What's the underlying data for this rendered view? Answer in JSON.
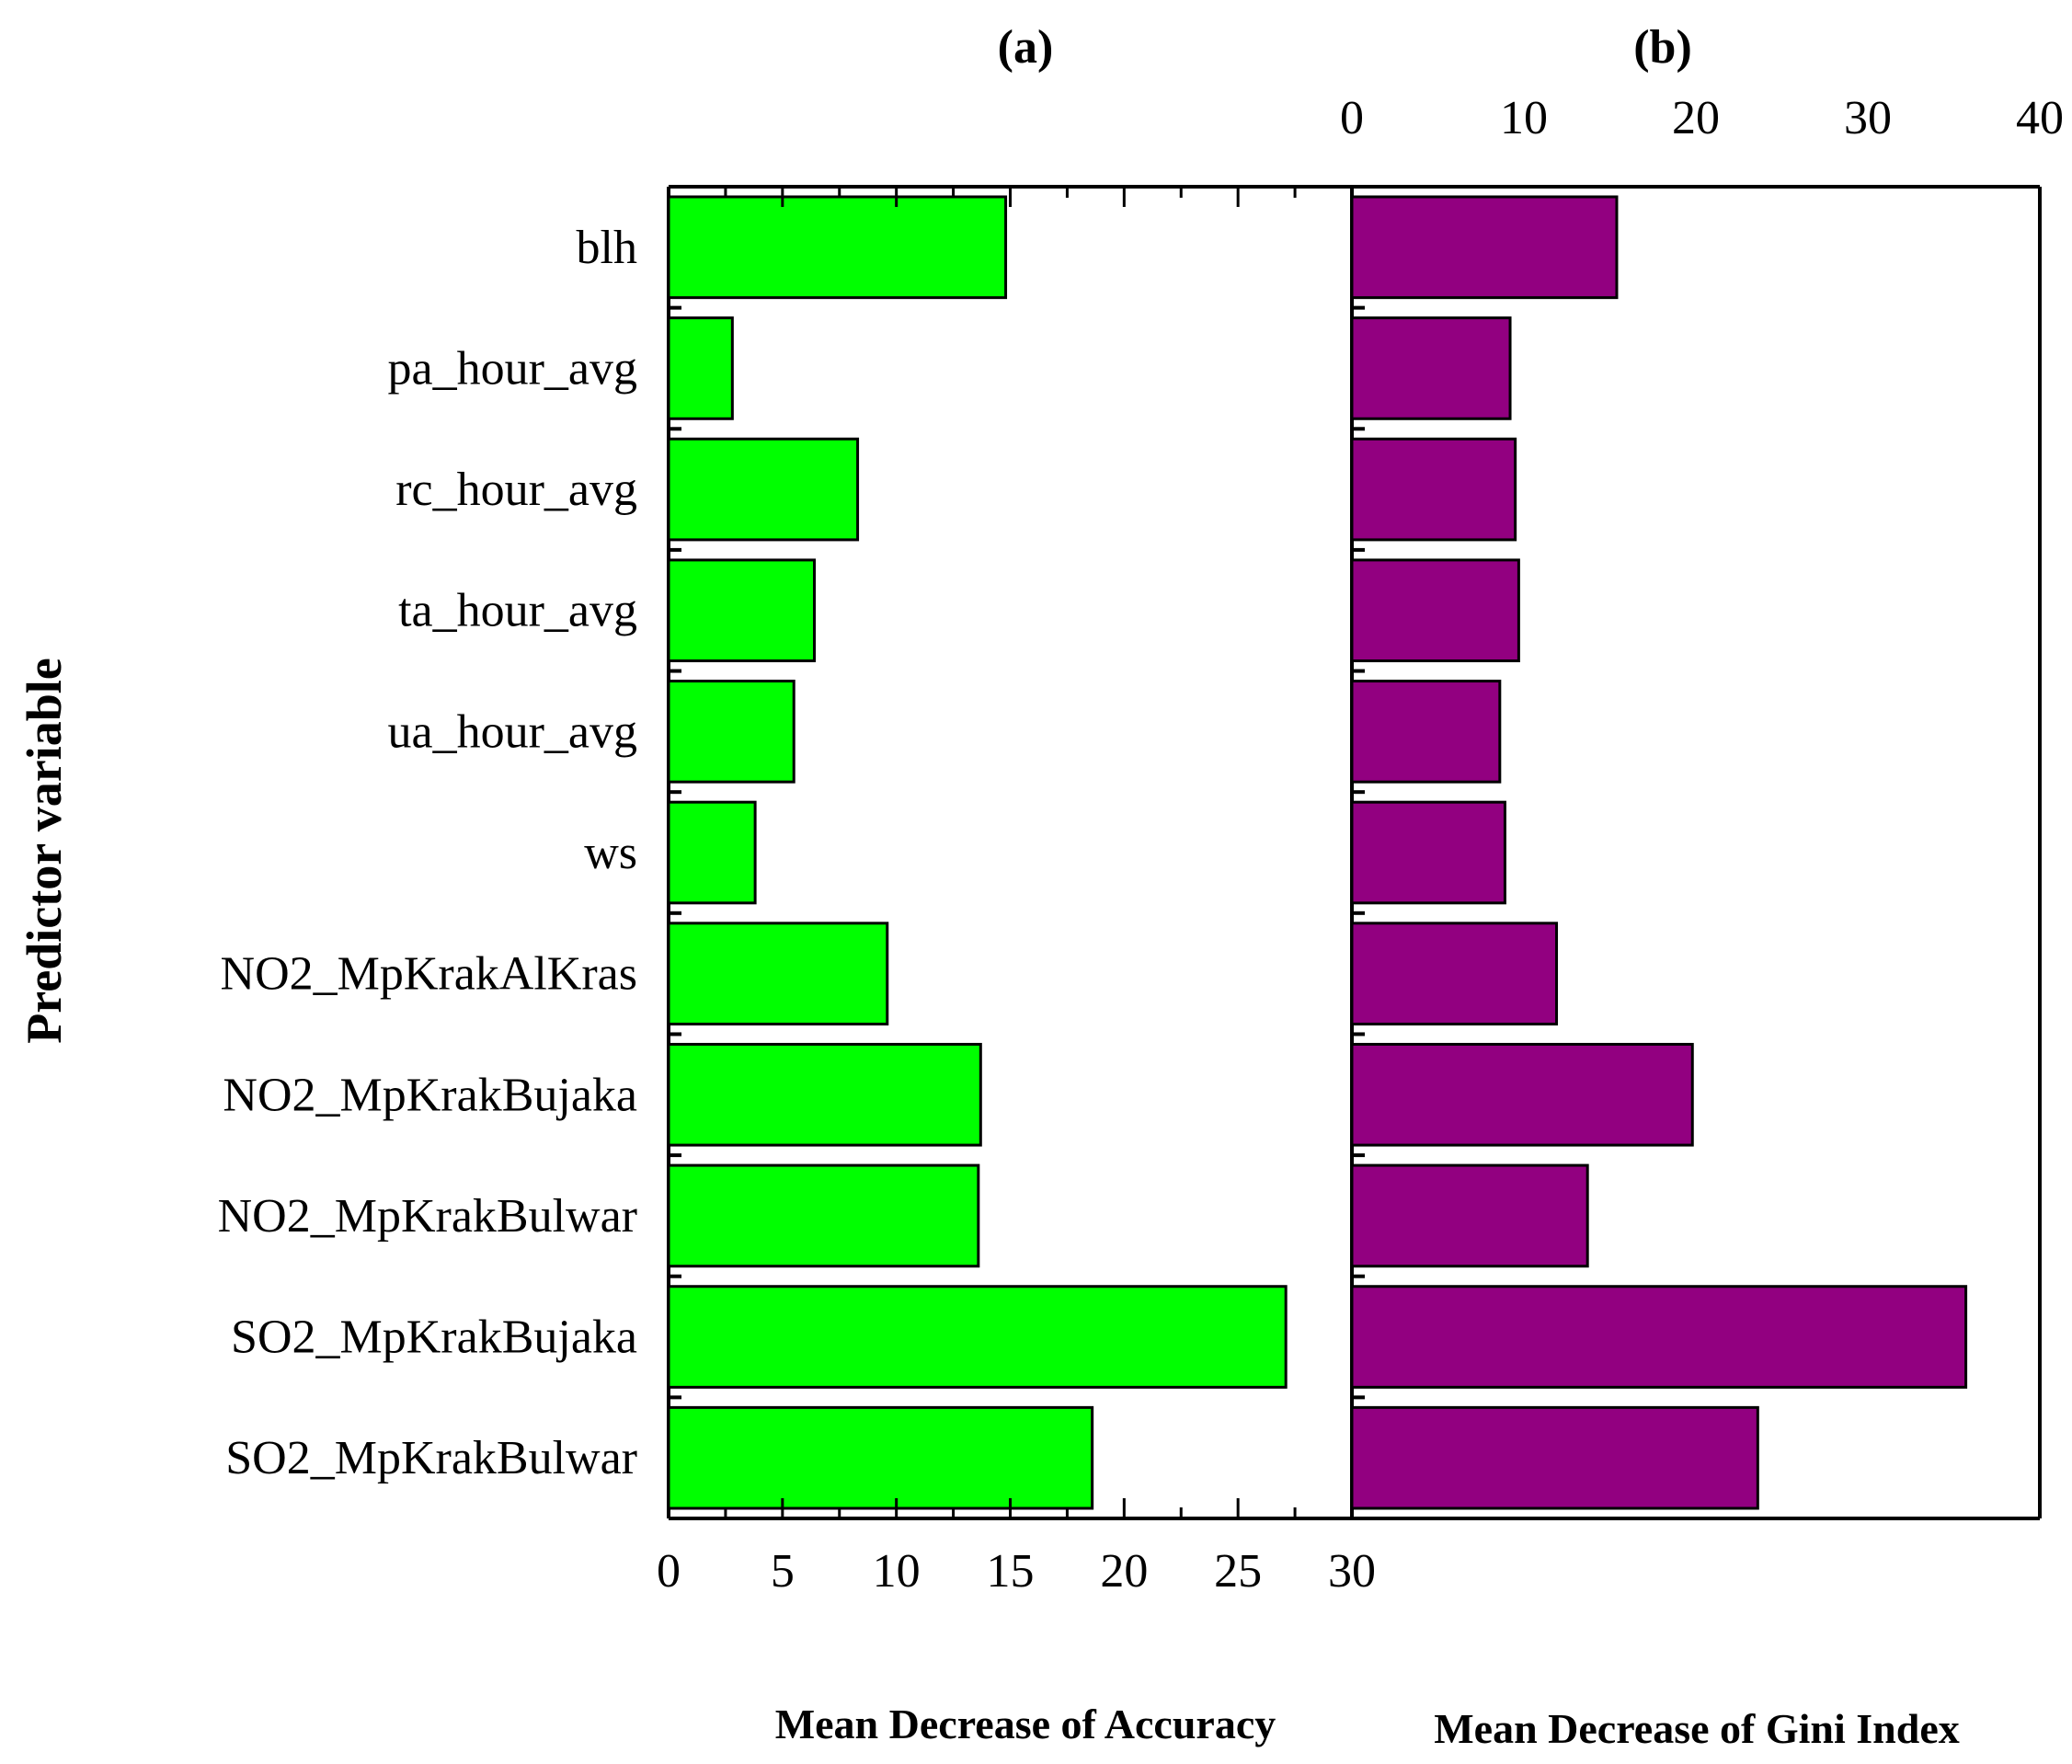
{
  "chart_data": [
    {
      "panel": "(a)",
      "type": "bar",
      "orientation": "horizontal",
      "title": "(a)",
      "xlabel": "Mean Decrease of Accuracy",
      "ylabel": "Predictor variable",
      "xlim": [
        0,
        30
      ],
      "xticks": [
        "0",
        "5",
        "10",
        "15",
        "20",
        "25",
        "30"
      ],
      "xaxis_position": "bottom",
      "color": "#00ff00",
      "categories": [
        "blh",
        "pa_hour_avg",
        "rc_hour_avg",
        "ta_hour_avg",
        "ua_hour_avg",
        "ws",
        "NO2_MpKrakAlKras",
        "NO2_MpKrakBujaka",
        "NO2_MpKrakBulwar",
        "SO2_MpKrakBujaka",
        "SO2_MpKrakBulwar"
      ],
      "values": [
        14.8,
        2.8,
        8.3,
        6.4,
        5.5,
        3.8,
        9.6,
        13.7,
        13.6,
        27.1,
        18.6
      ]
    },
    {
      "panel": "(b)",
      "type": "bar",
      "orientation": "horizontal",
      "title": "(b)",
      "xlabel": "Mean Decrease of Gini Index",
      "xlim": [
        0,
        40
      ],
      "xticks": [
        "0",
        "10",
        "20",
        "30",
        "40"
      ],
      "xaxis_position": "top",
      "color": "#920080",
      "categories": [
        "blh",
        "pa_hour_avg",
        "rc_hour_avg",
        "ta_hour_avg",
        "ua_hour_avg",
        "ws",
        "NO2_MpKrakAlKras",
        "NO2_MpKrakBujaka",
        "NO2_MpKrakBulwar",
        "SO2_MpKrakBujaka",
        "SO2_MpKrakBulwar"
      ],
      "values": [
        15.4,
        9.2,
        9.5,
        9.7,
        8.6,
        8.9,
        11.9,
        19.8,
        13.7,
        35.7,
        23.6
      ]
    }
  ]
}
